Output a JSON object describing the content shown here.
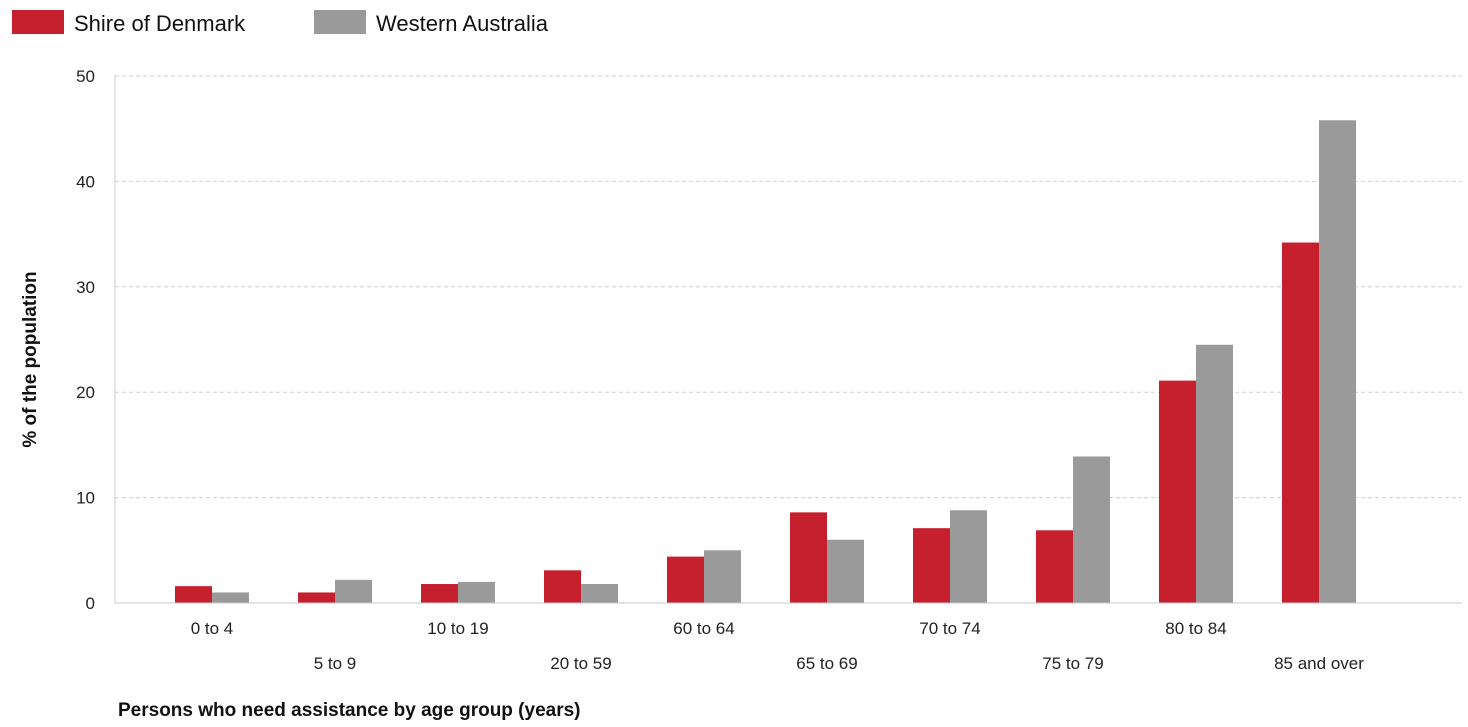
{
  "chart_data": {
    "type": "bar",
    "categories": [
      "0 to 4",
      "5 to 9",
      "10 to 19",
      "20 to 59",
      "60 to 64",
      "65 to 69",
      "70 to 74",
      "75 to 79",
      "80 to 84",
      "85 and over"
    ],
    "series": [
      {
        "name": "Shire of Denmark",
        "color": "#c6202f",
        "values": [
          1.6,
          1.0,
          1.8,
          3.1,
          4.4,
          8.6,
          7.1,
          6.9,
          21.1,
          34.2
        ]
      },
      {
        "name": "Western Australia",
        "color": "#9a9a9a",
        "values": [
          1.0,
          2.2,
          2.0,
          1.8,
          5.0,
          6.0,
          8.8,
          13.9,
          24.5,
          45.8
        ]
      }
    ],
    "ylabel": "% of the population",
    "xlabel": "Persons who need assistance by age group (years)",
    "ylim": [
      0,
      50
    ],
    "yticks": [
      0,
      10,
      20,
      30,
      40,
      50
    ],
    "grid": true,
    "legend_position": "top-left"
  }
}
